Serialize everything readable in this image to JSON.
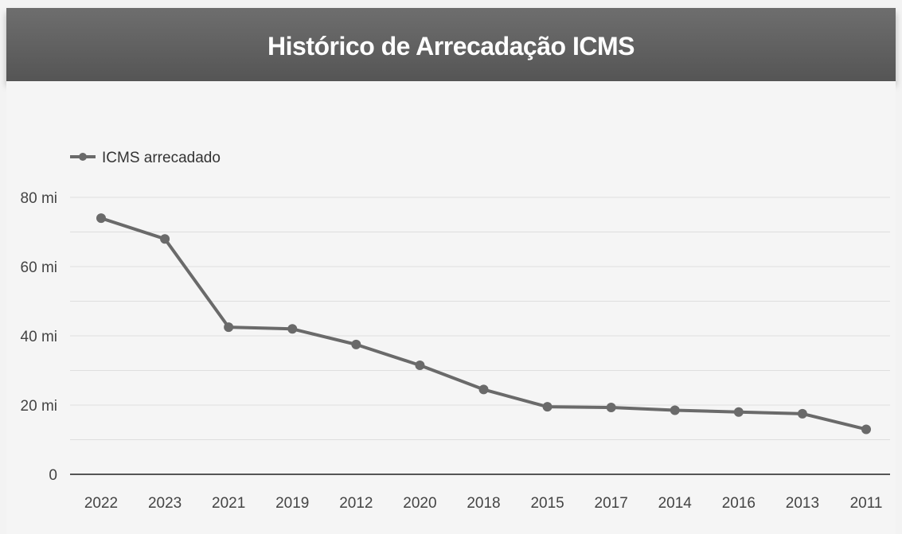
{
  "header": {
    "title": "Histórico de Arrecadação ICMS"
  },
  "colors": {
    "header_bg": "#5f5f5f",
    "line": "#6a6a6a",
    "grid": "#dedede"
  },
  "chart_data": {
    "type": "line",
    "title": "Histórico de Arrecadação ICMS",
    "categories": [
      "2022",
      "2023",
      "2021",
      "2019",
      "2012",
      "2020",
      "2018",
      "2015",
      "2017",
      "2014",
      "2016",
      "2013",
      "2011"
    ],
    "series": [
      {
        "name": "ICMS arrecadado",
        "values": [
          74,
          68,
          42.5,
          42,
          37.5,
          31.5,
          24.5,
          19.5,
          19.3,
          18.5,
          18,
          17.5,
          13
        ]
      }
    ],
    "ylim": [
      0,
      80
    ],
    "yticks": [
      0,
      20,
      40,
      60,
      80
    ],
    "ytick_labels": [
      "0",
      "20 mi",
      "40 mi",
      "60 mi",
      "80 mi"
    ],
    "xlabel": "",
    "ylabel": "",
    "grid": true,
    "legend_position": "top-left"
  }
}
